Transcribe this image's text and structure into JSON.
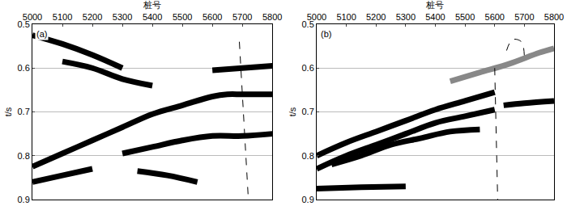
{
  "chart_data": [
    {
      "type": "line",
      "annotations": [
        "(a)"
      ],
      "x_label": "桩号",
      "y_label": "t/s",
      "xlim": [
        5000,
        5800
      ],
      "xticks": [
        5000,
        5100,
        5200,
        5300,
        5400,
        5500,
        5600,
        5700,
        5800
      ],
      "ylim": [
        0.9,
        0.5
      ],
      "yticks": [
        0.5,
        0.6,
        0.7,
        0.8,
        0.9
      ],
      "grid": true,
      "series": [
        {
          "color": "#000000",
          "line_style": "solid",
          "x": [
            5000,
            5100,
            5200,
            5300,
            5400,
            5500,
            5600,
            5650,
            5700,
            5800
          ],
          "values": [
            0.825,
            0.795,
            0.765,
            0.735,
            0.705,
            0.685,
            0.665,
            0.66,
            0.66,
            0.66
          ]
        },
        {
          "color": "#000000",
          "line_style": "solid",
          "x": [
            5300,
            5400,
            5500,
            5600,
            5700,
            5800
          ],
          "values": [
            0.795,
            0.78,
            0.765,
            0.755,
            0.755,
            0.75
          ]
        },
        {
          "color": "#000000",
          "line_style": "solid",
          "x": [
            5000,
            5100,
            5200,
            5300
          ],
          "values": [
            0.525,
            0.545,
            0.57,
            0.6
          ]
        },
        {
          "color": "#000000",
          "line_style": "solid",
          "x": [
            5100,
            5200,
            5300,
            5400
          ],
          "values": [
            0.585,
            0.6,
            0.625,
            0.64
          ]
        },
        {
          "color": "#000000",
          "line_style": "solid",
          "x": [
            5000,
            5100,
            5200
          ],
          "values": [
            0.86,
            0.845,
            0.83
          ]
        },
        {
          "color": "#000000",
          "line_style": "solid",
          "x": [
            5350,
            5450,
            5550
          ],
          "values": [
            0.835,
            0.845,
            0.86
          ]
        },
        {
          "color": "#000000",
          "line_style": "solid",
          "x": [
            5600,
            5700,
            5800
          ],
          "values": [
            0.605,
            0.6,
            0.595
          ]
        },
        {
          "color": "#000000",
          "line_style": "dash",
          "x": [
            5690,
            5720
          ],
          "values": [
            0.54,
            0.9
          ]
        }
      ]
    },
    {
      "type": "line",
      "annotations": [
        "(b)"
      ],
      "x_label": "桩号",
      "y_label": "t/s",
      "xlim": [
        5000,
        5800
      ],
      "xticks": [
        5000,
        5100,
        5200,
        5300,
        5400,
        5500,
        5600,
        5700,
        5800
      ],
      "ylim": [
        0.9,
        0.5
      ],
      "yticks": [
        0.5,
        0.6,
        0.7,
        0.8,
        0.9
      ],
      "grid": true,
      "series": [
        {
          "color": "#000000",
          "line_style": "solid",
          "x": [
            5000,
            5100,
            5200,
            5300,
            5400,
            5500,
            5600
          ],
          "values": [
            0.8,
            0.77,
            0.745,
            0.72,
            0.695,
            0.675,
            0.655
          ]
        },
        {
          "color": "#000000",
          "line_style": "solid",
          "x": [
            5000,
            5100,
            5200,
            5300,
            5400,
            5500,
            5600
          ],
          "values": [
            0.83,
            0.8,
            0.775,
            0.75,
            0.725,
            0.71,
            0.695
          ]
        },
        {
          "color": "#000000",
          "line_style": "solid",
          "x": [
            5050,
            5150,
            5250,
            5350,
            5450,
            5550
          ],
          "values": [
            0.82,
            0.8,
            0.775,
            0.76,
            0.745,
            0.74
          ]
        },
        {
          "color": "#000000",
          "line_style": "solid",
          "x": [
            5630,
            5700,
            5800
          ],
          "values": [
            0.685,
            0.68,
            0.675
          ]
        },
        {
          "color": "#000000",
          "line_style": "solid",
          "x": [
            5000,
            5150,
            5300
          ],
          "values": [
            0.875,
            0.872,
            0.87
          ]
        },
        {
          "color": "#888888",
          "line_style": "solid",
          "x": [
            5450,
            5550,
            5650,
            5750,
            5800
          ],
          "values": [
            0.63,
            0.61,
            0.59,
            0.565,
            0.555
          ]
        },
        {
          "color": "#000000",
          "line_style": "dash",
          "x": [
            5600,
            5610
          ],
          "values": [
            0.6,
            0.9
          ]
        },
        {
          "color": "#000000",
          "line_style": "dash",
          "x": [
            5640,
            5660,
            5690,
            5700
          ],
          "values": [
            0.56,
            0.535,
            0.54,
            0.575
          ]
        }
      ]
    }
  ]
}
